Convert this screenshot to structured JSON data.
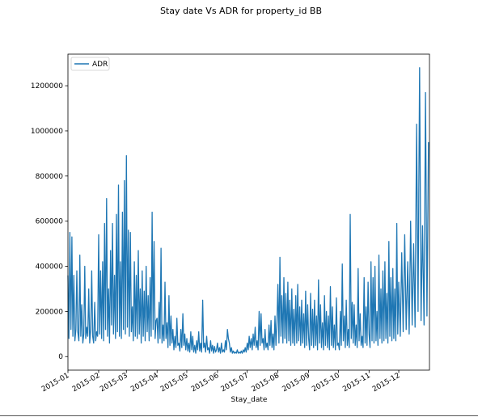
{
  "chart_data": {
    "type": "line",
    "title": "Stay date Vs ADR for property_id BB",
    "xlabel": "Stay_date",
    "ylabel": "",
    "x_ticks": [
      "2015-01",
      "2015-02",
      "2015-03",
      "2015-04",
      "2015-05",
      "2015-06",
      "2015-07",
      "2015-08",
      "2015-09",
      "2015-10",
      "2015-11",
      "2015-12"
    ],
    "y_ticks": [
      0,
      200000,
      400000,
      600000,
      800000,
      1000000,
      1200000
    ],
    "y_tick_labels": [
      "0",
      "200000",
      "400000",
      "600000",
      "800000",
      "1000000",
      "1200000"
    ],
    "ylim": [
      -60000,
      1340000
    ],
    "grid": false,
    "legend_position": "upper-left",
    "series": [
      {
        "name": "ADR",
        "color": "#1f77b4",
        "monthly_points": [
          {
            "month": "2015-01",
            "values": [
              360000,
              80000,
              550000,
              120000,
              530000,
              90000,
              360000,
              70000,
              120000,
              380000,
              110000,
              70000,
              450000,
              90000,
              230000,
              60000,
              100000,
              400000,
              80000,
              130000,
              90000,
              300000,
              60000,
              120000,
              380000,
              90000,
              60000,
              240000,
              70000,
              110000,
              90000
            ]
          },
          {
            "month": "2015-02",
            "values": [
              540000,
              100000,
              380000,
              80000,
              420000,
              70000,
              590000,
              120000,
              700000,
              90000,
              300000,
              60000,
              470000,
              140000,
              590000,
              100000,
              360000,
              80000,
              630000,
              110000,
              760000,
              90000,
              420000,
              80000,
              640000,
              120000,
              780000,
              100000
            ]
          },
          {
            "month": "2015-03",
            "values": [
              890000,
              130000,
              560000,
              90000,
              550000,
              110000,
              220000,
              70000,
              420000,
              90000,
              360000,
              80000,
              470000,
              100000,
              300000,
              60000,
              380000,
              90000,
              290000,
              70000,
              400000,
              110000,
              270000,
              70000,
              350000,
              90000,
              640000,
              120000,
              510000,
              80000,
              160000
            ]
          },
          {
            "month": "2015-04",
            "values": [
              170000,
              60000,
              240000,
              80000,
              480000,
              60000,
              140000,
              70000,
              330000,
              80000,
              150000,
              40000,
              270000,
              50000,
              180000,
              60000,
              120000,
              30000,
              90000,
              40000,
              170000,
              50000,
              60000,
              25000,
              120000,
              40000,
              190000,
              50000,
              100000,
              30000
            ]
          },
          {
            "month": "2015-05",
            "values": [
              80000,
              25000,
              60000,
              20000,
              110000,
              30000,
              90000,
              20000,
              50000,
              15000,
              70000,
              30000,
              110000,
              25000,
              60000,
              20000,
              250000,
              40000,
              60000,
              20000,
              90000,
              30000,
              40000,
              15000,
              70000,
              25000,
              50000,
              15000,
              45000,
              20000,
              30000
            ]
          },
          {
            "month": "2015-06",
            "values": [
              60000,
              20000,
              40000,
              15000,
              60000,
              20000,
              30000,
              20000,
              70000,
              30000,
              120000,
              80000,
              60000,
              20000,
              40000,
              15000,
              25000,
              15000,
              20000,
              15000,
              30000,
              15000,
              20000,
              15000,
              25000,
              15000,
              30000,
              20000,
              40000,
              20000
            ]
          },
          {
            "month": "2015-07",
            "values": [
              60000,
              30000,
              90000,
              40000,
              80000,
              30000,
              100000,
              50000,
              130000,
              40000,
              70000,
              30000,
              200000,
              50000,
              190000,
              60000,
              80000,
              30000,
              120000,
              40000,
              60000,
              30000,
              140000,
              50000,
              160000,
              40000,
              100000,
              30000,
              180000,
              50000,
              150000
            ]
          },
          {
            "month": "2015-08",
            "values": [
              320000,
              60000,
              440000,
              90000,
              270000,
              60000,
              350000,
              80000,
              280000,
              60000,
              330000,
              70000,
              250000,
              50000,
              300000,
              60000,
              210000,
              50000,
              270000,
              60000,
              320000,
              70000,
              220000,
              50000,
              250000,
              60000,
              190000,
              40000,
              290000,
              50000,
              230000
            ]
          },
          {
            "month": "2015-09",
            "values": [
              80000,
              30000,
              280000,
              50000,
              210000,
              40000,
              250000,
              50000,
              180000,
              30000,
              340000,
              60000,
              230000,
              40000,
              150000,
              30000,
              270000,
              50000,
              200000,
              40000,
              180000,
              30000,
              310000,
              50000,
              220000,
              40000,
              140000,
              30000,
              260000,
              50000
            ]
          },
          {
            "month": "2015-10",
            "values": [
              60000,
              30000,
              200000,
              50000,
              410000,
              70000,
              180000,
              40000,
              250000,
              50000,
              120000,
              40000,
              630000,
              80000,
              240000,
              60000,
              230000,
              50000,
              140000,
              40000,
              390000,
              70000,
              190000,
              50000,
              90000,
              40000,
              350000,
              60000,
              220000,
              50000,
              330000
            ]
          },
          {
            "month": "2015-11",
            "values": [
              100000,
              40000,
              420000,
              70000,
              350000,
              60000,
              400000,
              70000,
              200000,
              50000,
              450000,
              80000,
              300000,
              60000,
              380000,
              70000,
              420000,
              80000,
              280000,
              60000,
              510000,
              90000,
              350000,
              70000,
              390000,
              80000,
              300000,
              70000,
              590000,
              100000
            ]
          },
          {
            "month": "2015-12",
            "values": [
              330000,
              90000,
              460000,
              110000,
              540000,
              120000,
              420000,
              100000,
              600000,
              140000,
              500000,
              130000,
              1030000,
              200000,
              1280000,
              160000,
              580000,
              140000,
              1170000,
              180000,
              950000
            ]
          }
        ]
      }
    ]
  }
}
